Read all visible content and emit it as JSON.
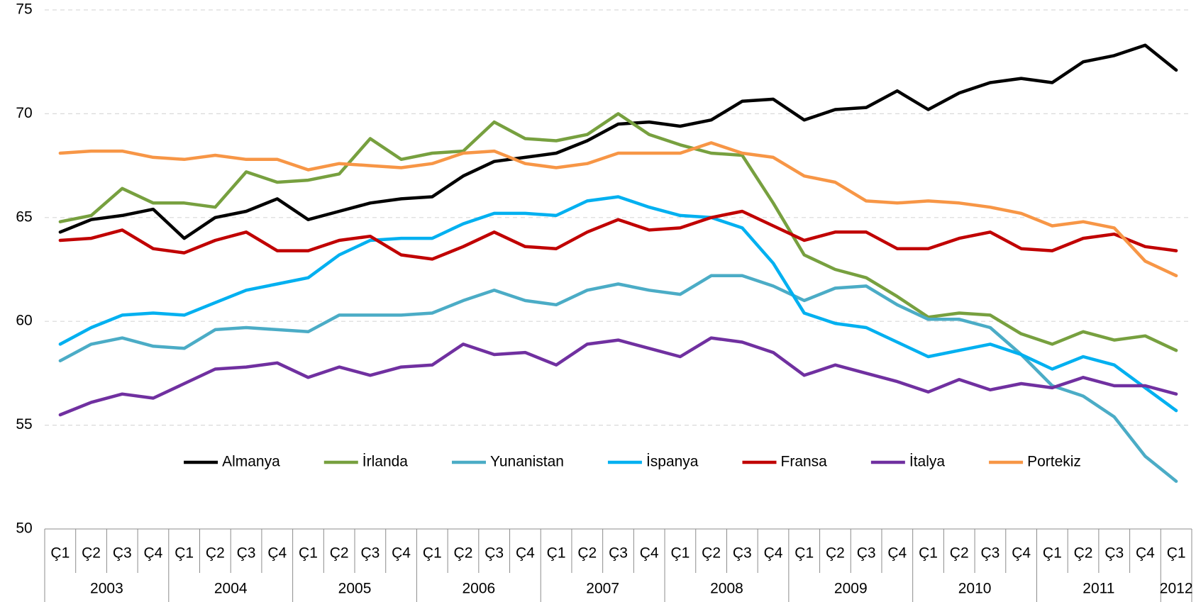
{
  "chart_data": {
    "type": "line",
    "categories": [
      "Ç1",
      "Ç2",
      "Ç3",
      "Ç4",
      "Ç1",
      "Ç2",
      "Ç3",
      "Ç4",
      "Ç1",
      "Ç2",
      "Ç3",
      "Ç4",
      "Ç1",
      "Ç2",
      "Ç3",
      "Ç4",
      "Ç1",
      "Ç2",
      "Ç3",
      "Ç4",
      "Ç1",
      "Ç2",
      "Ç3",
      "Ç4",
      "Ç1",
      "Ç2",
      "Ç3",
      "Ç4",
      "Ç1",
      "Ç2",
      "Ç3",
      "Ç4",
      "Ç1",
      "Ç2",
      "Ç3",
      "Ç4",
      "Ç1"
    ],
    "x_groups": [
      "2003",
      "2004",
      "2005",
      "2006",
      "2007",
      "2008",
      "2009",
      "2010",
      "2011",
      "2012"
    ],
    "ylim": [
      50,
      75
    ],
    "yticks": [
      50,
      55,
      60,
      65,
      70,
      75
    ],
    "grid": true,
    "legend_position": "lower center",
    "series": [
      {
        "name": "Almanya",
        "color": "#000000",
        "values": [
          64.3,
          64.9,
          65.1,
          65.4,
          64.0,
          65.0,
          65.3,
          65.9,
          64.9,
          65.3,
          65.7,
          65.9,
          66.0,
          67.0,
          67.7,
          67.9,
          68.1,
          68.7,
          69.5,
          69.6,
          69.4,
          69.7,
          70.6,
          70.7,
          69.7,
          70.2,
          70.3,
          71.1,
          70.2,
          71.0,
          71.5,
          71.7,
          71.5,
          72.5,
          72.8,
          73.3,
          72.1
        ]
      },
      {
        "name": "İrlanda",
        "color": "#77a03f",
        "values": [
          64.8,
          65.1,
          66.4,
          65.7,
          65.7,
          65.5,
          67.2,
          66.7,
          66.8,
          67.1,
          68.8,
          67.8,
          68.1,
          68.2,
          69.6,
          68.8,
          68.7,
          69.0,
          70.0,
          69.0,
          68.5,
          68.1,
          68.0,
          65.7,
          63.2,
          62.5,
          62.1,
          61.2,
          60.2,
          60.4,
          60.3,
          59.4,
          58.9,
          59.5,
          59.1,
          59.3,
          58.6
        ]
      },
      {
        "name": "Yunanistan",
        "color": "#4bacc6",
        "values": [
          58.1,
          58.9,
          59.2,
          58.8,
          58.7,
          59.6,
          59.7,
          59.6,
          59.5,
          60.3,
          60.3,
          60.3,
          60.4,
          61.0,
          61.5,
          61.0,
          60.8,
          61.5,
          61.8,
          61.5,
          61.3,
          62.2,
          62.2,
          61.7,
          61.0,
          61.6,
          61.7,
          60.8,
          60.1,
          60.1,
          59.7,
          58.4,
          56.9,
          56.4,
          55.4,
          53.5,
          52.3
        ]
      },
      {
        "name": "İspanya",
        "color": "#00b0f0",
        "values": [
          58.9,
          59.7,
          60.3,
          60.4,
          60.3,
          60.9,
          61.5,
          61.8,
          62.1,
          63.2,
          63.9,
          64.0,
          64.0,
          64.7,
          65.2,
          65.2,
          65.1,
          65.8,
          66.0,
          65.5,
          65.1,
          65.0,
          64.5,
          62.8,
          60.4,
          59.9,
          59.7,
          59.0,
          58.3,
          58.6,
          58.9,
          58.4,
          57.7,
          58.3,
          57.9,
          56.8,
          55.7
        ]
      },
      {
        "name": "Fransa",
        "color": "#c00000",
        "values": [
          63.9,
          64.0,
          64.4,
          63.5,
          63.3,
          63.9,
          64.3,
          63.4,
          63.4,
          63.9,
          64.1,
          63.2,
          63.0,
          63.6,
          64.3,
          63.6,
          63.5,
          64.3,
          64.9,
          64.4,
          64.5,
          65.0,
          65.3,
          64.6,
          63.9,
          64.3,
          64.3,
          63.5,
          63.5,
          64.0,
          64.3,
          63.5,
          63.4,
          64.0,
          64.2,
          63.6,
          63.4
        ]
      },
      {
        "name": "İtalya",
        "color": "#7030a0",
        "values": [
          55.5,
          56.1,
          56.5,
          56.3,
          57.0,
          57.7,
          57.8,
          58.0,
          57.3,
          57.8,
          57.4,
          57.8,
          57.9,
          58.9,
          58.4,
          58.5,
          57.9,
          58.9,
          59.1,
          58.7,
          58.3,
          59.2,
          59.0,
          58.5,
          57.4,
          57.9,
          57.5,
          57.1,
          56.6,
          57.2,
          56.7,
          57.0,
          56.8,
          57.3,
          56.9,
          56.9,
          56.5
        ]
      },
      {
        "name": "Portekiz",
        "color": "#f79646",
        "values": [
          68.1,
          68.2,
          68.2,
          67.9,
          67.8,
          68.0,
          67.8,
          67.8,
          67.3,
          67.6,
          67.5,
          67.4,
          67.6,
          68.1,
          68.2,
          67.6,
          67.4,
          67.6,
          68.1,
          68.1,
          68.1,
          68.6,
          68.1,
          67.9,
          67.0,
          66.7,
          65.8,
          65.7,
          65.8,
          65.7,
          65.5,
          65.2,
          64.6,
          64.8,
          64.5,
          62.9,
          62.2
        ]
      }
    ]
  }
}
